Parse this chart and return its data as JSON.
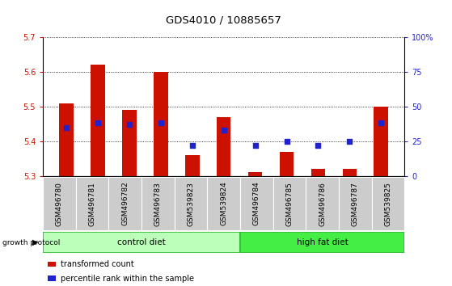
{
  "title": "GDS4010 / 10885657",
  "samples": [
    "GSM496780",
    "GSM496781",
    "GSM496782",
    "GSM496783",
    "GSM539823",
    "GSM539824",
    "GSM496784",
    "GSM496785",
    "GSM496786",
    "GSM496787",
    "GSM539825"
  ],
  "bar_values": [
    5.51,
    5.62,
    5.49,
    5.6,
    5.36,
    5.47,
    5.31,
    5.37,
    5.32,
    5.32,
    5.5
  ],
  "bar_base": 5.3,
  "percentile_values": [
    35,
    38,
    37,
    38,
    22,
    33,
    22,
    25,
    22,
    25,
    38
  ],
  "ylim_left": [
    5.3,
    5.7
  ],
  "ylim_right": [
    0,
    100
  ],
  "bar_color": "#cc1100",
  "dot_color": "#2222cc",
  "grid_color": "#000000",
  "control_diet_indices": [
    0,
    1,
    2,
    3,
    4,
    5
  ],
  "high_fat_diet_indices": [
    6,
    7,
    8,
    9,
    10
  ],
  "control_color": "#bbffbb",
  "high_fat_color": "#44ee44",
  "control_edge": "#33bb33",
  "high_fat_edge": "#33bb33",
  "tick_color_left": "#cc1100",
  "tick_color_right": "#2222cc",
  "yticks_left": [
    5.3,
    5.4,
    5.5,
    5.6,
    5.7
  ],
  "yticks_right": [
    0,
    25,
    50,
    75,
    100
  ],
  "xlabel_bg": "#cccccc",
  "xlabel_edge": "#aaaaaa"
}
